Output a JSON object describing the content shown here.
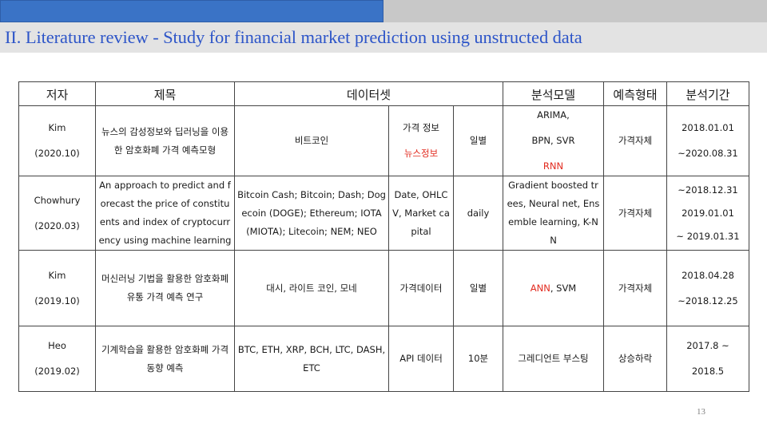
{
  "slide": {
    "title": "II. Literature review - Study for financial market prediction using unstructed data",
    "page_number": "13"
  },
  "table": {
    "headers": {
      "author": "저자",
      "title": "제목",
      "dataset": "데이터셋",
      "model": "분석모델",
      "prediction_type": "예측형태",
      "period": "분석기간"
    },
    "rows": [
      {
        "author": "Kim",
        "year": "(2020.10)",
        "title": "뉴스의 감성정보와 딥러닝을 이용한 암호화폐 가격 예측모형",
        "dataset_assets": "비트코인",
        "dataset_features": [
          "가격 정보",
          "뉴스정보"
        ],
        "frequency": "일별",
        "models": [
          "ARIMA,",
          "BPN, SVR",
          "RNN"
        ],
        "prediction_type": "가격자체",
        "period": [
          "2018.01.01",
          "~2020.08.31"
        ]
      },
      {
        "author": "Chowhury",
        "year": "(2020.03)",
        "title": "An approach to predict and forecast the price of constituents and index of cryptocurrency using machine learning",
        "dataset_assets": "Bitcoin Cash; Bitcoin; Dash; Dogecoin (DOGE); Ethereum; IOTA (MIOTA); Litecoin; NEM; NEO",
        "dataset_features": [
          "Date, OHLCV, Market capital"
        ],
        "frequency": "daily",
        "models": [
          "Gradient boosted trees, Neural net, Ensemble learning, K-NN"
        ],
        "prediction_type": "가격자체",
        "period": [
          "~2018.12.31",
          "2019.01.01",
          "~ 2019.01.31"
        ]
      },
      {
        "author": "Kim",
        "year": "(2019.10)",
        "title": "머신러닝 기법을 활용한 암호화폐 유통 가격 예측 연구",
        "dataset_assets": "대시, 라이트 코인, 모네",
        "dataset_features": [
          "가격데이터"
        ],
        "frequency": "일별",
        "models": [
          "ANN",
          ", SVM"
        ],
        "prediction_type": "가격자체",
        "period": [
          "2018.04.28",
          "~2018.12.25"
        ]
      },
      {
        "author": "Heo",
        "year": "(2019.02)",
        "title": "기계학습을 활용한 암호화폐 가격 동향 예측",
        "dataset_assets": "BTC, ETH, XRP, BCH, LTC, DASH, ETC",
        "dataset_features": [
          "API 데이터"
        ],
        "frequency": "10분",
        "models": [
          "그레디언트 부스팅"
        ],
        "prediction_type": "상승하락",
        "period": [
          "2017.8 ~",
          "2018.5"
        ]
      }
    ]
  },
  "colors": {
    "accent_blue": "#3a73c6",
    "title_blue": "#2d55c8",
    "highlight_red": "#e22b1f"
  }
}
